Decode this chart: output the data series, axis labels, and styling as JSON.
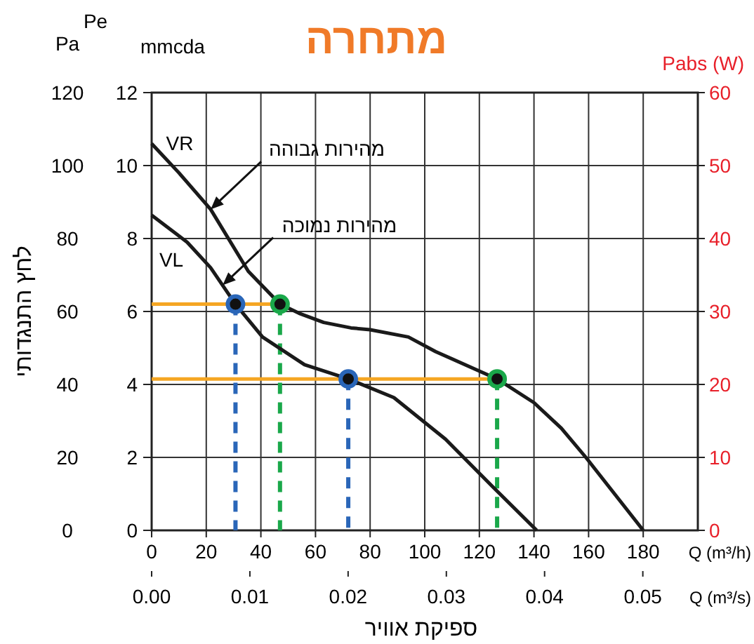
{
  "chart_data": {
    "type": "line",
    "title": "מתחרה",
    "xlabel": "Q (m³/h)",
    "x2label": "Q (m³/s)",
    "ylabel": "לחץ התנגדותי",
    "y2label": "mmcda",
    "y3label": "Pabs (W)",
    "xlim": [
      0,
      200
    ],
    "xticks": [
      0,
      20,
      40,
      60,
      80,
      100,
      120,
      140,
      160,
      180
    ],
    "x2lim": [
      0,
      0.0556
    ],
    "x2ticks": [
      {
        "value": 0,
        "label": "0.00"
      },
      {
        "value": 0.01,
        "label": "0.01"
      },
      {
        "value": 0.02,
        "label": "0.02"
      },
      {
        "value": 0.03,
        "label": "0.03"
      },
      {
        "value": 0.04,
        "label": "0.04"
      },
      {
        "value": 0.05,
        "label": "0.05"
      }
    ],
    "ylim": [
      0,
      120
    ],
    "yticks": [
      0,
      20,
      40,
      60,
      80,
      100,
      120
    ],
    "y2lim": [
      0,
      12
    ],
    "y2ticks": [
      0,
      2,
      4,
      6,
      8,
      10,
      12
    ],
    "y3lim": [
      0,
      60
    ],
    "y3ticks": [
      0,
      10,
      20,
      30,
      40,
      50,
      60
    ],
    "grid": true,
    "annotations": [
      "Pa",
      "Pe",
      "VR",
      "VL",
      "ספיקת אוויר",
      {
        "text": "מהירות גבוהה",
        "x": 21.6,
        "y": 88
      },
      {
        "text": "מהירות נמוכה",
        "x": 26,
        "y": 67.2
      }
    ],
    "series": [
      {
        "color": "#f5a623",
        "x": [
          0,
          47
        ],
        "values": [
          62,
          62
        ]
      },
      {
        "color": "#f5a623",
        "x": [
          0,
          126.5
        ],
        "values": [
          41.5,
          41.5
        ]
      },
      {
        "line_style": "dashed",
        "color": "#2a66b8",
        "x": [
          30.7,
          30.7
        ],
        "values": [
          62,
          0
        ]
      },
      {
        "line_style": "dashed",
        "color": "#2a66b8",
        "x": [
          72,
          72
        ],
        "values": [
          41.5,
          0
        ]
      },
      {
        "line_style": "dashed",
        "color": "#1aa84a",
        "x": [
          47,
          47
        ],
        "values": [
          62,
          0
        ]
      },
      {
        "line_style": "dashed",
        "color": "#1aa84a",
        "x": [
          126.5,
          126.5
        ],
        "values": [
          41.5,
          0
        ]
      },
      {
        "color": "#1a1a1a",
        "x": [
          0,
          10,
          21.6,
          35.4,
          47,
          54,
          63,
          73,
          80,
          94,
          104,
          126.5,
          140,
          150,
          159,
          169.5,
          180
        ],
        "values": [
          106,
          98,
          88,
          71,
          62,
          59.5,
          57,
          55.5,
          55,
          53,
          49,
          41.5,
          35,
          28,
          20,
          10,
          0
        ]
      },
      {
        "color": "#1a1a1a",
        "x": [
          0,
          13,
          21.6,
          30.7,
          40.6,
          56,
          72,
          88.7,
          107.6,
          124.8,
          141
        ],
        "values": [
          86.4,
          79,
          72,
          62,
          53,
          45.4,
          41.5,
          36.4,
          25,
          12,
          0
        ]
      },
      {
        "type": "scatter",
        "marker": "circle",
        "color": "#2a66b8",
        "x": [
          30.7,
          72
        ],
        "values": [
          62,
          41.5
        ]
      },
      {
        "type": "scatter",
        "marker": "circle",
        "color": "#1aa84a",
        "x": [
          47,
          126.5
        ],
        "values": [
          62,
          41.5
        ]
      }
    ]
  }
}
